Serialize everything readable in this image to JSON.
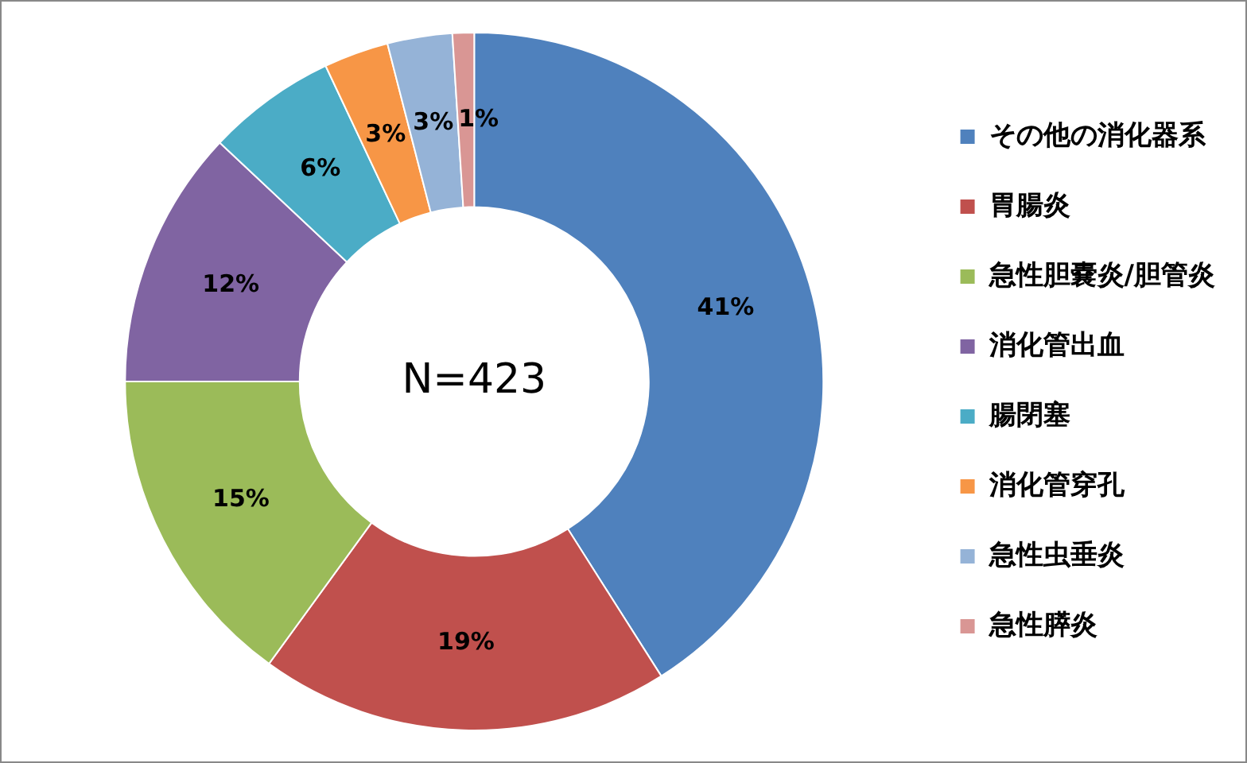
{
  "chart_data": {
    "type": "donut",
    "categories": [
      "その他の消化器系",
      "胃腸炎",
      "急性胆嚢炎/胆管炎",
      "消化管出血",
      "腸閉塞",
      "消化管穿孔",
      "急性虫垂炎",
      "急性膵炎"
    ],
    "values": [
      41,
      19,
      15,
      12,
      6,
      3,
      3,
      1
    ],
    "colors": [
      "#4f81bd",
      "#c0504d",
      "#9bbb59",
      "#8064a2",
      "#4bacc6",
      "#f79646",
      "#95b3d7",
      "#d99694"
    ],
    "value_labels": [
      "41%",
      "19%",
      "15%",
      "12%",
      "6%",
      "3%",
      "3%",
      "1%"
    ],
    "annotations": [
      "N=423"
    ],
    "legend": "right"
  }
}
